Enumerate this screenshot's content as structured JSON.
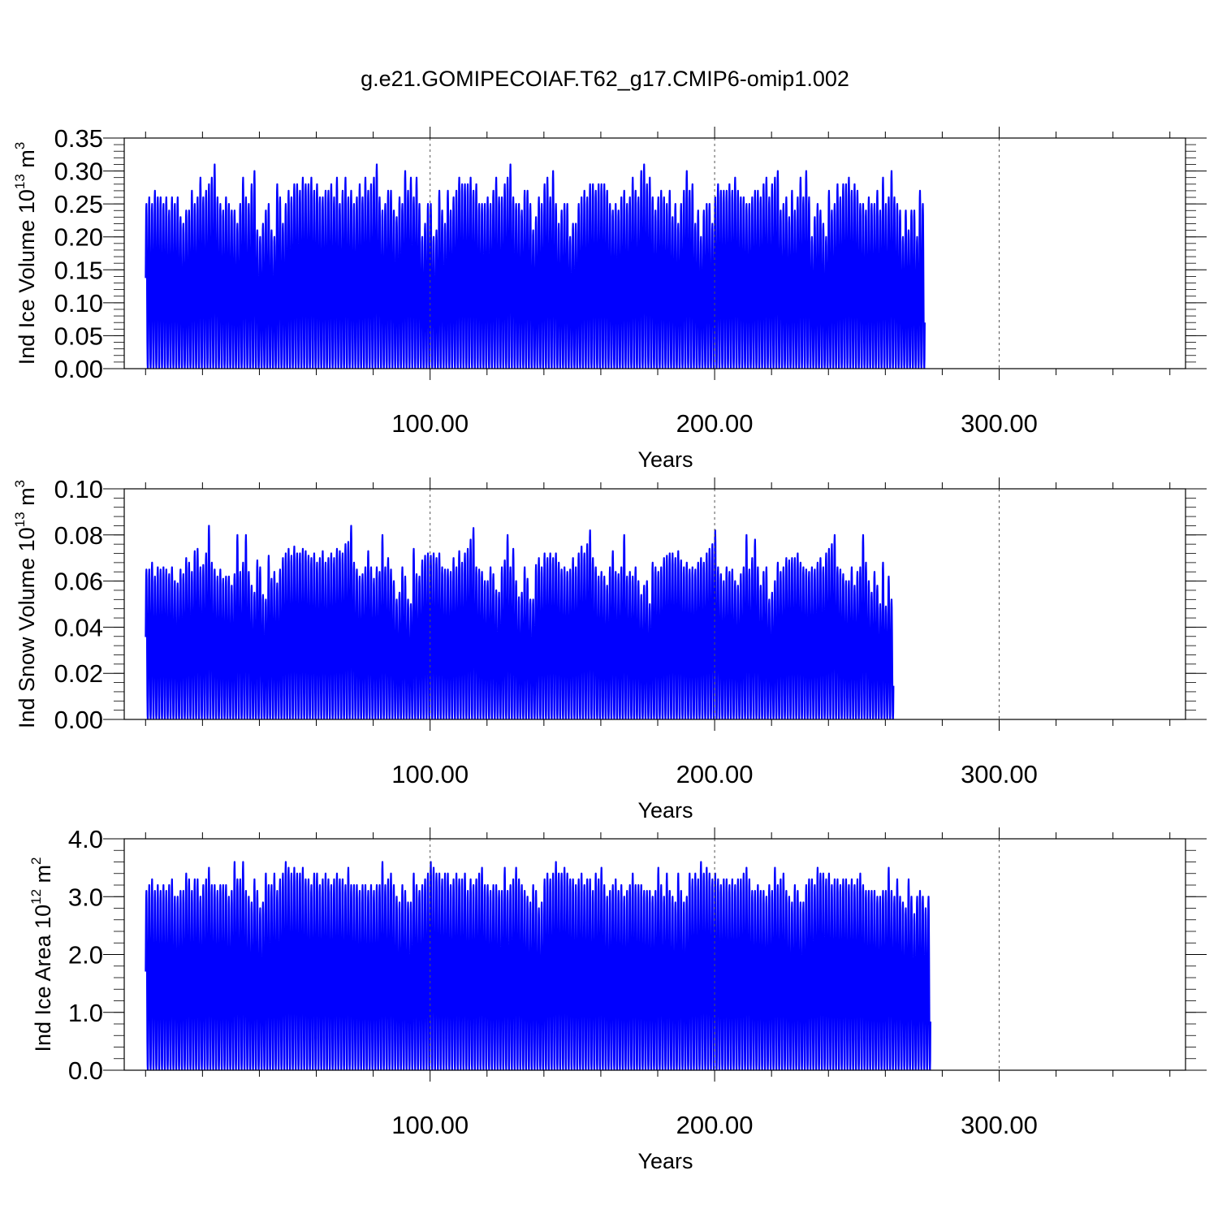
{
  "title": "g.e21.GOMIPECOIAF.T62_g17.CMIP6-omip1.002",
  "colors": {
    "series": "#0000ff",
    "axis": "#000000",
    "grid": "#555555"
  },
  "chart_data": [
    {
      "type": "line",
      "title": "",
      "xlabel": "Years",
      "ylabel": {
        "base": "Ind Ice Volume 10",
        "exp": "13",
        "unit": " m",
        "unit_exp": "3"
      },
      "xlim": [
        -7.5,
        365.5
      ],
      "ylim": [
        0.0,
        0.35
      ],
      "xticks": [
        100,
        200,
        300
      ],
      "xtick_labels": [
        "100.00",
        "200.00",
        "300.00"
      ],
      "yticks": [
        0.0,
        0.05,
        0.1,
        0.15,
        0.2,
        0.25,
        0.3,
        0.35
      ],
      "ytick_labels": [
        "0.00",
        "0.05",
        "0.10",
        "0.15",
        "0.20",
        "0.25",
        "0.30",
        "0.35"
      ],
      "y_minor_step": 0.01,
      "grid": "dashed vertical at major x ticks",
      "series": [
        {
          "x_start": 0.04,
          "x_step": 0.0833,
          "annual_max": [
            0.25,
            0.26,
            0.25,
            0.27,
            0.26,
            0.26,
            0.25,
            0.26,
            0.24,
            0.26,
            0.25,
            0.26,
            0.23,
            0.22,
            0.24,
            0.24,
            0.27,
            0.25,
            0.26,
            0.29,
            0.26,
            0.27,
            0.28,
            0.29,
            0.31,
            0.26,
            0.25,
            0.24,
            0.26,
            0.25,
            0.24,
            0.24,
            0.22,
            0.25,
            0.29,
            0.26,
            0.25,
            0.28,
            0.3,
            0.21,
            0.2,
            0.22,
            0.24,
            0.25,
            0.21,
            0.2,
            0.28,
            0.26,
            0.22,
            0.25,
            0.27,
            0.26,
            0.28,
            0.28,
            0.27,
            0.29,
            0.28,
            0.28,
            0.29,
            0.27,
            0.28,
            0.26,
            0.26,
            0.27,
            0.27,
            0.28,
            0.26,
            0.29,
            0.25,
            0.27,
            0.29,
            0.26,
            0.27,
            0.25,
            0.26,
            0.28,
            0.26,
            0.29,
            0.27,
            0.28,
            0.29,
            0.31,
            0.26,
            0.24,
            0.25,
            0.27,
            0.27,
            0.24,
            0.23,
            0.26,
            0.25,
            0.3,
            0.27,
            0.29,
            0.26,
            0.29,
            0.25,
            0.2,
            0.22,
            0.25,
            0.25,
            0.2,
            0.21,
            0.27,
            0.24,
            0.22,
            0.27,
            0.24,
            0.26,
            0.27,
            0.29,
            0.28,
            0.28,
            0.28,
            0.29,
            0.27,
            0.28,
            0.25,
            0.25,
            0.25,
            0.26,
            0.25,
            0.27,
            0.29,
            0.26,
            0.26,
            0.28,
            0.29,
            0.31,
            0.26,
            0.25,
            0.25,
            0.24,
            0.27,
            0.27,
            0.25,
            0.21,
            0.23,
            0.26,
            0.25,
            0.28,
            0.29,
            0.26,
            0.3,
            0.25,
            0.22,
            0.24,
            0.25,
            0.25,
            0.2,
            0.22,
            0.22,
            0.25,
            0.26,
            0.27,
            0.26,
            0.28,
            0.28,
            0.27,
            0.28,
            0.28,
            0.28,
            0.27,
            0.25,
            0.24,
            0.25,
            0.24,
            0.26,
            0.27,
            0.25,
            0.26,
            0.29,
            0.27,
            0.26,
            0.3,
            0.31,
            0.28,
            0.29,
            0.26,
            0.24,
            0.26,
            0.27,
            0.26,
            0.25,
            0.27,
            0.23,
            0.25,
            0.22,
            0.25,
            0.27,
            0.3,
            0.27,
            0.28,
            0.22,
            0.24,
            0.2,
            0.24,
            0.25,
            0.25,
            0.22,
            0.26,
            0.28,
            0.27,
            0.27,
            0.27,
            0.28,
            0.27,
            0.29,
            0.27,
            0.26,
            0.26,
            0.25,
            0.25,
            0.26,
            0.27,
            0.27,
            0.26,
            0.28,
            0.29,
            0.26,
            0.28,
            0.29,
            0.3,
            0.24,
            0.25,
            0.26,
            0.23,
            0.27,
            0.24,
            0.26,
            0.29,
            0.26,
            0.3,
            0.26,
            0.2,
            0.23,
            0.25,
            0.24,
            0.22,
            0.2,
            0.27,
            0.24,
            0.25,
            0.28,
            0.26,
            0.28,
            0.28,
            0.29,
            0.27,
            0.28,
            0.27,
            0.25,
            0.25,
            0.24,
            0.26,
            0.25,
            0.25,
            0.27,
            0.24,
            0.29,
            0.25,
            0.26,
            0.3,
            0.26,
            0.25,
            0.24,
            0.2,
            0.24,
            0.21,
            0.24,
            0.24,
            0.2,
            0.27,
            0.25
          ],
          "min_level": 0.0
        }
      ]
    },
    {
      "type": "line",
      "title": "",
      "xlabel": "Years",
      "ylabel": {
        "base": "Ind Snow Volume 10",
        "exp": "13",
        "unit": " m",
        "unit_exp": "3"
      },
      "xlim": [
        -7.5,
        365.5
      ],
      "ylim": [
        0.0,
        0.1
      ],
      "xticks": [
        100,
        200,
        300
      ],
      "xtick_labels": [
        "100.00",
        "200.00",
        "300.00"
      ],
      "yticks": [
        0.0,
        0.02,
        0.04,
        0.06,
        0.08,
        0.1
      ],
      "ytick_labels": [
        "0.00",
        "0.02",
        "0.04",
        "0.06",
        "0.08",
        "0.10"
      ],
      "y_minor_step": 0.004,
      "grid": "dashed vertical at major x ticks",
      "series": [
        {
          "x_start": 0.04,
          "x_step": 0.0833,
          "annual_max": [
            0.065,
            0.065,
            0.068,
            0.062,
            0.066,
            0.065,
            0.066,
            0.065,
            0.063,
            0.066,
            0.06,
            0.059,
            0.065,
            0.063,
            0.07,
            0.068,
            0.064,
            0.073,
            0.074,
            0.066,
            0.067,
            0.072,
            0.084,
            0.068,
            0.065,
            0.062,
            0.065,
            0.061,
            0.062,
            0.062,
            0.058,
            0.063,
            0.08,
            0.064,
            0.068,
            0.08,
            0.064,
            0.058,
            0.055,
            0.069,
            0.066,
            0.054,
            0.052,
            0.071,
            0.061,
            0.064,
            0.059,
            0.065,
            0.07,
            0.072,
            0.074,
            0.071,
            0.075,
            0.072,
            0.072,
            0.074,
            0.073,
            0.071,
            0.07,
            0.072,
            0.068,
            0.07,
            0.073,
            0.068,
            0.07,
            0.072,
            0.07,
            0.074,
            0.073,
            0.072,
            0.076,
            0.077,
            0.084,
            0.068,
            0.065,
            0.062,
            0.063,
            0.066,
            0.073,
            0.066,
            0.061,
            0.066,
            0.064,
            0.08,
            0.066,
            0.07,
            0.065,
            0.06,
            0.052,
            0.055,
            0.066,
            0.062,
            0.052,
            0.05,
            0.074,
            0.063,
            0.062,
            0.069,
            0.071,
            0.072,
            0.071,
            0.072,
            0.07,
            0.072,
            0.066,
            0.065,
            0.065,
            0.064,
            0.07,
            0.066,
            0.073,
            0.068,
            0.072,
            0.074,
            0.078,
            0.083,
            0.066,
            0.065,
            0.064,
            0.06,
            0.06,
            0.066,
            0.063,
            0.056,
            0.055,
            0.066,
            0.069,
            0.08,
            0.066,
            0.074,
            0.06,
            0.053,
            0.055,
            0.066,
            0.061,
            0.052,
            0.052,
            0.067,
            0.07,
            0.066,
            0.072,
            0.07,
            0.072,
            0.07,
            0.072,
            0.068,
            0.065,
            0.066,
            0.064,
            0.065,
            0.07,
            0.066,
            0.072,
            0.075,
            0.072,
            0.076,
            0.082,
            0.07,
            0.066,
            0.062,
            0.064,
            0.062,
            0.058,
            0.066,
            0.073,
            0.064,
            0.063,
            0.066,
            0.08,
            0.062,
            0.064,
            0.062,
            0.066,
            0.06,
            0.054,
            0.058,
            0.06,
            0.05,
            0.068,
            0.066,
            0.064,
            0.066,
            0.07,
            0.071,
            0.072,
            0.072,
            0.07,
            0.073,
            0.069,
            0.066,
            0.068,
            0.065,
            0.066,
            0.065,
            0.068,
            0.07,
            0.068,
            0.072,
            0.074,
            0.076,
            0.082,
            0.066,
            0.063,
            0.06,
            0.066,
            0.064,
            0.065,
            0.06,
            0.058,
            0.063,
            0.066,
            0.08,
            0.065,
            0.07,
            0.078,
            0.066,
            0.058,
            0.064,
            0.066,
            0.052,
            0.055,
            0.06,
            0.068,
            0.064,
            0.066,
            0.07,
            0.069,
            0.07,
            0.07,
            0.072,
            0.068,
            0.066,
            0.065,
            0.064,
            0.066,
            0.065,
            0.068,
            0.07,
            0.066,
            0.072,
            0.074,
            0.076,
            0.08,
            0.066,
            0.065,
            0.063,
            0.06,
            0.06,
            0.066,
            0.058,
            0.064,
            0.066,
            0.08,
            0.068,
            0.06,
            0.055,
            0.064,
            0.058,
            0.05,
            0.068,
            0.049,
            0.062,
            0.052
          ],
          "min_level": 0.0
        }
      ]
    },
    {
      "type": "line",
      "title": "",
      "xlabel": "Years",
      "ylabel": {
        "base": "Ind Ice Area 10",
        "exp": "12",
        "unit": " m",
        "unit_exp": "2"
      },
      "xlim": [
        -7.5,
        365.5
      ],
      "ylim": [
        0.0,
        4.0
      ],
      "xticks": [
        100,
        200,
        300
      ],
      "xtick_labels": [
        "100.00",
        "200.00",
        "300.00"
      ],
      "yticks": [
        0.0,
        1.0,
        2.0,
        3.0,
        4.0
      ],
      "ytick_labels": [
        "0.0",
        "1.0",
        "2.0",
        "3.0",
        "4.0"
      ],
      "y_minor_step": 0.2,
      "grid": "dashed vertical at major x ticks",
      "series": [
        {
          "x_start": 0.04,
          "x_step": 0.0833,
          "annual_max": [
            3.1,
            3.2,
            3.3,
            3.1,
            3.2,
            3.1,
            3.2,
            3.1,
            3.2,
            3.3,
            3.0,
            3.0,
            3.1,
            3.1,
            3.4,
            3.3,
            3.1,
            3.3,
            3.3,
            3.0,
            3.2,
            3.3,
            3.5,
            3.2,
            3.2,
            3.1,
            3.2,
            3.2,
            3.2,
            3.0,
            3.1,
            3.6,
            3.3,
            3.3,
            3.6,
            3.1,
            3.0,
            2.9,
            3.3,
            3.1,
            2.8,
            2.9,
            3.4,
            3.2,
            3.2,
            3.4,
            3.1,
            3.3,
            3.4,
            3.6,
            3.5,
            3.4,
            3.5,
            3.4,
            3.4,
            3.5,
            3.3,
            3.3,
            3.2,
            3.4,
            3.4,
            3.2,
            3.3,
            3.4,
            3.3,
            3.2,
            3.3,
            3.4,
            3.3,
            3.3,
            3.2,
            3.5,
            3.2,
            3.2,
            3.2,
            3.1,
            3.2,
            3.2,
            3.1,
            3.2,
            3.1,
            3.2,
            3.2,
            3.6,
            3.2,
            3.3,
            3.4,
            3.2,
            3.0,
            2.9,
            3.2,
            3.1,
            2.9,
            2.9,
            3.4,
            3.2,
            3.1,
            3.2,
            3.3,
            3.4,
            3.6,
            3.5,
            3.4,
            3.4,
            3.3,
            3.4,
            3.4,
            3.2,
            3.3,
            3.4,
            3.3,
            3.3,
            3.4,
            3.1,
            3.3,
            3.2,
            3.3,
            3.4,
            3.5,
            3.2,
            3.2,
            3.1,
            3.2,
            3.2,
            3.1,
            3.1,
            3.5,
            3.1,
            3.2,
            3.3,
            3.5,
            3.3,
            3.2,
            3.1,
            3.0,
            2.9,
            3.2,
            3.1,
            2.8,
            2.9,
            3.3,
            3.4,
            3.3,
            3.4,
            3.6,
            3.4,
            3.4,
            3.5,
            3.4,
            3.3,
            3.3,
            3.2,
            3.3,
            3.4,
            3.2,
            3.3,
            3.3,
            3.1,
            3.4,
            3.3,
            3.5,
            3.2,
            3.0,
            3.1,
            3.2,
            3.3,
            3.1,
            3.2,
            3.0,
            3.1,
            3.2,
            3.4,
            3.2,
            3.2,
            3.2,
            3.1,
            3.1,
            3.1,
            3.0,
            3.1,
            3.5,
            3.2,
            3.0,
            3.4,
            3.1,
            3.0,
            2.9,
            3.4,
            3.1,
            2.9,
            3.0,
            3.4,
            3.3,
            3.4,
            3.3,
            3.6,
            3.4,
            3.5,
            3.4,
            3.3,
            3.4,
            3.3,
            3.2,
            3.3,
            3.3,
            3.2,
            3.3,
            3.2,
            3.3,
            3.3,
            3.4,
            3.5,
            3.3,
            3.1,
            3.1,
            3.2,
            3.1,
            3.1,
            3.0,
            3.2,
            3.1,
            3.5,
            3.2,
            3.3,
            3.4,
            3.1,
            3.0,
            2.9,
            3.2,
            3.1,
            2.9,
            2.9,
            3.2,
            3.3,
            3.3,
            3.2,
            3.5,
            3.4,
            3.4,
            3.3,
            3.4,
            3.2,
            3.3,
            3.3,
            3.2,
            3.3,
            3.3,
            3.2,
            3.3,
            3.2,
            3.3,
            3.4,
            3.2,
            3.1,
            3.1,
            3.1,
            3.1,
            3.0,
            3.0,
            3.1,
            3.1,
            3.5,
            3.1,
            3.0,
            3.3,
            3.0,
            2.9,
            2.8,
            3.3,
            3.0,
            2.7,
            3.0,
            3.1,
            3.0,
            2.8,
            3.0
          ],
          "min_level": 0.0
        }
      ]
    }
  ]
}
